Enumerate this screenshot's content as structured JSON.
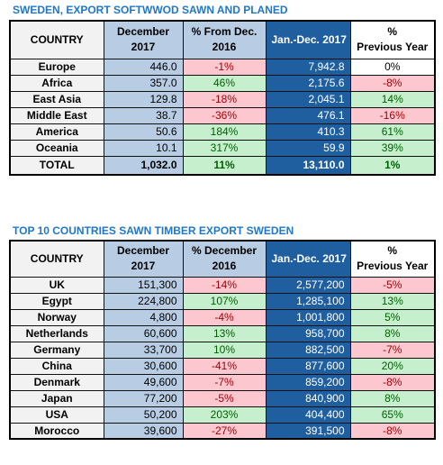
{
  "table1": {
    "title": "SWEDEN, EXPORT SOFTWWOD SAWN AND PLANED",
    "headers": {
      "country": "COUNTRY",
      "dec_line1": "December",
      "dec_line2": "2017",
      "pct_line1": "% From Dec.",
      "pct_line2": "2016",
      "ytd": "Jan.-Dec. 2017",
      "prev_line1": "%",
      "prev_line2": "Previous Year"
    },
    "rows": [
      {
        "country": "Europe",
        "dec": "446.0",
        "pct": "-1%",
        "pct_tone": "neg",
        "ytd": "7,942.8",
        "prev": "0%",
        "prev_tone": "neu"
      },
      {
        "country": "Africa",
        "dec": "357.0",
        "pct": "46%",
        "pct_tone": "pos",
        "ytd": "2,175.6",
        "prev": "-8%",
        "prev_tone": "neg"
      },
      {
        "country": "East Asia",
        "dec": "129.8",
        "pct": "-18%",
        "pct_tone": "neg",
        "ytd": "2,045.1",
        "prev": "14%",
        "prev_tone": "pos"
      },
      {
        "country": "Middle East",
        "dec": "38.7",
        "pct": "-36%",
        "pct_tone": "neg",
        "ytd": "476.1",
        "prev": "-16%",
        "prev_tone": "neg"
      },
      {
        "country": "America",
        "dec": "50.6",
        "pct": "184%",
        "pct_tone": "pos",
        "ytd": "410.3",
        "prev": "61%",
        "prev_tone": "pos"
      },
      {
        "country": "Oceania",
        "dec": "10.1",
        "pct": "317%",
        "pct_tone": "pos",
        "ytd": "59.9",
        "prev": "39%",
        "prev_tone": "pos"
      }
    ],
    "total": {
      "country": "TOTAL",
      "dec": "1,032.0",
      "pct": "11%",
      "pct_tone": "pos",
      "ytd": "13,110.0",
      "prev": "1%",
      "prev_tone": "pos"
    }
  },
  "table2": {
    "title": "TOP 10 COUNTRIES SAWN TIMBER EXPORT SWEDEN",
    "headers": {
      "country": "COUNTRY",
      "dec_line1": "December",
      "dec_line2": "2017",
      "pct_line1": "% December",
      "pct_line2": "2016",
      "ytd": "Jan.-Dec. 2017",
      "prev_line1": "%",
      "prev_line2": "Previous Year"
    },
    "rows": [
      {
        "country": "UK",
        "dec": "151,300",
        "pct": "-14%",
        "pct_tone": "neg",
        "ytd": "2,577,200",
        "prev": "-5%",
        "prev_tone": "neg"
      },
      {
        "country": "Egypt",
        "dec": "224,800",
        "pct": "107%",
        "pct_tone": "pos",
        "ytd": "1,285,100",
        "prev": "13%",
        "prev_tone": "pos"
      },
      {
        "country": "Norway",
        "dec": "4,800",
        "pct": "-4%",
        "pct_tone": "neg",
        "ytd": "1,001,800",
        "prev": "5%",
        "prev_tone": "pos"
      },
      {
        "country": "Netherlands",
        "dec": "60,600",
        "pct": "13%",
        "pct_tone": "pos",
        "ytd": "958,700",
        "prev": "8%",
        "prev_tone": "pos"
      },
      {
        "country": "Germany",
        "dec": "33,700",
        "pct": "10%",
        "pct_tone": "pos",
        "ytd": "882,500",
        "prev": "-7%",
        "prev_tone": "neg"
      },
      {
        "country": "China",
        "dec": "30,600",
        "pct": "-41%",
        "pct_tone": "neg",
        "ytd": "877,600",
        "prev": "20%",
        "prev_tone": "pos"
      },
      {
        "country": "Denmark",
        "dec": "49,600",
        "pct": "-7%",
        "pct_tone": "neg",
        "ytd": "859,200",
        "prev": "-8%",
        "prev_tone": "neg"
      },
      {
        "country": "Japan",
        "dec": "77,200",
        "pct": "-5%",
        "pct_tone": "neg",
        "ytd": "840,900",
        "prev": "8%",
        "prev_tone": "pos"
      },
      {
        "country": "USA",
        "dec": "50,200",
        "pct": "203%",
        "pct_tone": "pos",
        "ytd": "404,400",
        "prev": "65%",
        "prev_tone": "pos"
      },
      {
        "country": "Morocco",
        "dec": "39,600",
        "pct": "-27%",
        "pct_tone": "neg",
        "ytd": "391,500",
        "prev": "-8%",
        "prev_tone": "neg"
      }
    ]
  }
}
